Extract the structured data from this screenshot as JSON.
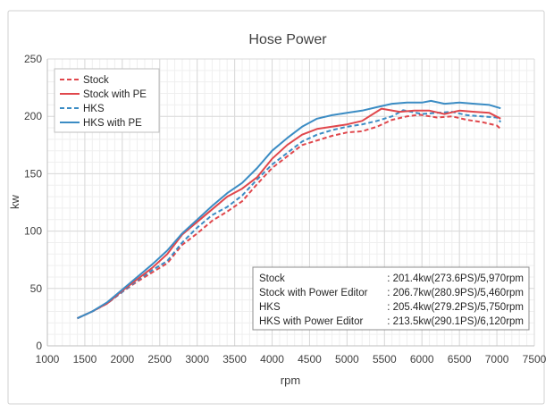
{
  "chart_data": {
    "type": "line",
    "title": "Hose Power",
    "xlabel": "rpm",
    "ylabel": "kw",
    "xlim": [
      1000,
      7500
    ],
    "ylim": [
      0,
      250
    ],
    "x_ticks": [
      1000,
      1500,
      2000,
      2500,
      3000,
      3500,
      4000,
      4500,
      5000,
      5500,
      6000,
      6500,
      7000,
      7500
    ],
    "y_ticks": [
      0,
      50,
      100,
      150,
      200,
      250
    ],
    "grid": true,
    "legend_position": "top-left",
    "series": [
      {
        "name": "Stock",
        "color": "#e0474c",
        "dash": true,
        "points": [
          [
            1400,
            24
          ],
          [
            1600,
            30
          ],
          [
            1800,
            37
          ],
          [
            2000,
            47
          ],
          [
            2200,
            56
          ],
          [
            2400,
            64
          ],
          [
            2600,
            72
          ],
          [
            2800,
            88
          ],
          [
            3000,
            98
          ],
          [
            3200,
            109
          ],
          [
            3400,
            117
          ],
          [
            3600,
            126
          ],
          [
            3800,
            141
          ],
          [
            4000,
            155
          ],
          [
            4200,
            165
          ],
          [
            4400,
            175
          ],
          [
            4600,
            179
          ],
          [
            4800,
            183
          ],
          [
            5000,
            186
          ],
          [
            5200,
            187
          ],
          [
            5400,
            191
          ],
          [
            5600,
            197
          ],
          [
            5800,
            200
          ],
          [
            5970,
            201.4
          ],
          [
            6200,
            199
          ],
          [
            6400,
            200
          ],
          [
            6600,
            197
          ],
          [
            6800,
            195
          ],
          [
            7000,
            192
          ],
          [
            7050,
            189
          ]
        ]
      },
      {
        "name": "Stock with PE",
        "color": "#e0474c",
        "dash": false,
        "points": [
          [
            1400,
            24
          ],
          [
            1600,
            30
          ],
          [
            1800,
            37
          ],
          [
            2000,
            48
          ],
          [
            2200,
            58
          ],
          [
            2400,
            68
          ],
          [
            2600,
            80
          ],
          [
            2800,
            97
          ],
          [
            3000,
            108
          ],
          [
            3200,
            119
          ],
          [
            3400,
            130
          ],
          [
            3600,
            137
          ],
          [
            3800,
            147
          ],
          [
            4000,
            163
          ],
          [
            4200,
            175
          ],
          [
            4400,
            184
          ],
          [
            4600,
            189
          ],
          [
            4800,
            191
          ],
          [
            5000,
            193
          ],
          [
            5200,
            196
          ],
          [
            5460,
            206.7
          ],
          [
            5700,
            204
          ],
          [
            5900,
            205
          ],
          [
            6100,
            205
          ],
          [
            6300,
            202
          ],
          [
            6500,
            205
          ],
          [
            6700,
            204
          ],
          [
            6900,
            203
          ],
          [
            7050,
            198
          ]
        ]
      },
      {
        "name": "HKS",
        "color": "#3b8cc4",
        "dash": true,
        "points": [
          [
            1400,
            24
          ],
          [
            1600,
            30
          ],
          [
            1800,
            37
          ],
          [
            2000,
            47
          ],
          [
            2200,
            57
          ],
          [
            2400,
            66
          ],
          [
            2600,
            74
          ],
          [
            2800,
            90
          ],
          [
            3000,
            103
          ],
          [
            3200,
            114
          ],
          [
            3400,
            121
          ],
          [
            3600,
            131
          ],
          [
            3800,
            145
          ],
          [
            4000,
            158
          ],
          [
            4200,
            168
          ],
          [
            4400,
            178
          ],
          [
            4600,
            184
          ],
          [
            4800,
            188
          ],
          [
            5000,
            191
          ],
          [
            5200,
            193
          ],
          [
            5400,
            196
          ],
          [
            5600,
            200
          ],
          [
            5750,
            205.4
          ],
          [
            6000,
            202
          ],
          [
            6200,
            203
          ],
          [
            6400,
            204
          ],
          [
            6600,
            201
          ],
          [
            6800,
            200
          ],
          [
            7000,
            199
          ],
          [
            7050,
            195
          ]
        ]
      },
      {
        "name": "HKS with PE",
        "color": "#3b8cc4",
        "dash": false,
        "points": [
          [
            1400,
            24
          ],
          [
            1600,
            30
          ],
          [
            1800,
            38
          ],
          [
            2000,
            49
          ],
          [
            2200,
            60
          ],
          [
            2400,
            71
          ],
          [
            2600,
            83
          ],
          [
            2800,
            98
          ],
          [
            3000,
            110
          ],
          [
            3200,
            122
          ],
          [
            3400,
            133
          ],
          [
            3600,
            142
          ],
          [
            3800,
            155
          ],
          [
            4000,
            170
          ],
          [
            4200,
            181
          ],
          [
            4400,
            191
          ],
          [
            4600,
            198
          ],
          [
            4800,
            201
          ],
          [
            5000,
            203
          ],
          [
            5200,
            205
          ],
          [
            5400,
            208
          ],
          [
            5600,
            211
          ],
          [
            5800,
            212
          ],
          [
            6000,
            212
          ],
          [
            6120,
            213.5
          ],
          [
            6300,
            211
          ],
          [
            6500,
            212
          ],
          [
            6700,
            211
          ],
          [
            6900,
            210
          ],
          [
            7050,
            207
          ]
        ]
      }
    ],
    "annotation": [
      {
        "label": "Stock",
        "value": ": 201.4kw(273.6PS)/5,970rpm"
      },
      {
        "label": "Stock with Power Editor",
        "value": ": 206.7kw(280.9PS)/5,460rpm"
      },
      {
        "label": "HKS",
        "value": ": 205.4kw(279.2PS)/5,750rpm"
      },
      {
        "label": "HKS with Power Editor",
        "value": ": 213.5kw(290.1PS)/6,120rpm"
      }
    ]
  }
}
